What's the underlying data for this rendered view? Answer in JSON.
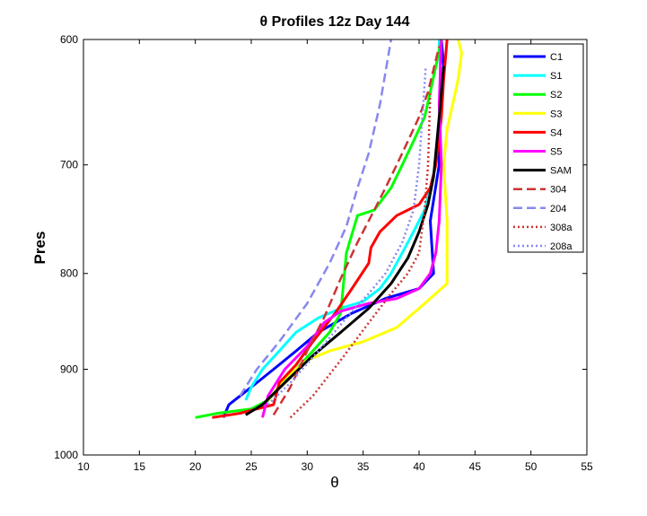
{
  "chart_data": {
    "type": "line",
    "title": "θ Profiles 12z Day 144",
    "xlabel": "θ",
    "ylabel": "Pres",
    "xlim": [
      10,
      55
    ],
    "ylim": [
      1000,
      600
    ],
    "y_reversed": true,
    "y_scale": "log",
    "x_ticks": [
      10,
      15,
      20,
      25,
      30,
      35,
      40,
      45,
      50,
      55
    ],
    "y_ticks": [
      600,
      700,
      800,
      900,
      1000
    ],
    "grid": false,
    "legend_position": "top-right",
    "series": [
      {
        "name": "C1",
        "color": "#0000ff",
        "dash": "solid",
        "x": [
          22.5,
          23.0,
          24.0,
          25.5,
          27.0,
          29.0,
          31.0,
          34.0,
          37.0,
          40.0,
          41.3,
          41.0,
          41.8,
          41.8,
          42.0,
          42.2,
          42.0
        ],
        "y": [
          955,
          940,
          930,
          915,
          900,
          880,
          860,
          840,
          825,
          815,
          800,
          750,
          700,
          680,
          650,
          620,
          600
        ]
      },
      {
        "name": "S1",
        "color": "#00ffff",
        "dash": "solid",
        "x": [
          24.5,
          25.0,
          26.0,
          27.5,
          29.0,
          31.0,
          33.0,
          35.0,
          36.5,
          37.5,
          38.5,
          39.5,
          40.5,
          41.0,
          41.5,
          42.0,
          41.8
        ],
        "y": [
          935,
          920,
          900,
          880,
          860,
          845,
          835,
          828,
          815,
          800,
          780,
          760,
          740,
          720,
          700,
          650,
          600
        ]
      },
      {
        "name": "S2",
        "color": "#00ff00",
        "dash": "solid",
        "x": [
          20.0,
          22.0,
          25.0,
          26.5,
          27.5,
          29.0,
          30.5,
          32.0,
          33.0,
          33.5,
          34.5,
          36.0,
          37.5,
          38.5,
          39.5,
          40.5,
          41.0,
          41.5,
          42.0
        ],
        "y": [
          955,
          950,
          945,
          935,
          920,
          900,
          880,
          860,
          840,
          780,
          745,
          740,
          720,
          700,
          680,
          660,
          640,
          620,
          600
        ]
      },
      {
        "name": "S3",
        "color": "#ffff00",
        "dash": "solid",
        "x": [
          26.5,
          28.0,
          30.0,
          32.0,
          35.0,
          38.0,
          40.0,
          41.5,
          42.5,
          42.5,
          42.2,
          42.5,
          43.0,
          43.5,
          43.8,
          43.5
        ],
        "y": [
          935,
          910,
          890,
          880,
          870,
          855,
          835,
          820,
          810,
          750,
          700,
          670,
          650,
          630,
          610,
          600
        ]
      },
      {
        "name": "S4",
        "color": "#ff0000",
        "dash": "solid",
        "x": [
          21.5,
          24.0,
          27.0,
          27.5,
          29.0,
          30.5,
          32.5,
          34.0,
          35.5,
          35.7,
          36.5,
          38.0,
          40.0,
          41.0,
          41.5,
          42.0,
          42.2,
          42.5
        ],
        "y": [
          955,
          950,
          940,
          915,
          895,
          870,
          840,
          815,
          790,
          775,
          760,
          745,
          735,
          720,
          700,
          660,
          630,
          600
        ]
      },
      {
        "name": "S5",
        "color": "#ff00ff",
        "dash": "solid",
        "x": [
          26.0,
          26.5,
          28.0,
          30.0,
          31.5,
          33.0,
          35.5,
          38.0,
          40.0,
          41.0,
          41.5,
          41.8,
          42.0,
          41.8,
          42.0
        ],
        "y": [
          955,
          930,
          900,
          875,
          850,
          838,
          830,
          825,
          815,
          800,
          780,
          750,
          700,
          650,
          600
        ]
      },
      {
        "name": "SAM",
        "color": "#000000",
        "dash": "solid",
        "x": [
          24.5,
          26.0,
          28.0,
          30.5,
          33.0,
          35.5,
          37.5,
          39.0,
          40.0,
          40.8,
          41.3,
          41.6,
          41.9,
          42.2
        ],
        "y": [
          952,
          940,
          915,
          885,
          860,
          835,
          810,
          785,
          760,
          735,
          710,
          680,
          650,
          620
        ]
      },
      {
        "name": "304",
        "color": "#cc3333",
        "dash": "dashed",
        "x": [
          27.0,
          28.5,
          30.0,
          31.5,
          33.0,
          34.5,
          36.0,
          37.0,
          38.0,
          39.0,
          40.0,
          40.8,
          41.8
        ],
        "y": [
          952,
          920,
          880,
          845,
          805,
          770,
          740,
          720,
          700,
          680,
          660,
          640,
          605
        ]
      },
      {
        "name": "204",
        "color": "#8888ee",
        "dash": "dashed",
        "x": [
          24.0,
          25.5,
          27.5,
          30.0,
          32.0,
          33.5,
          34.5,
          35.5,
          36.5,
          37.5
        ],
        "y": [
          930,
          900,
          870,
          830,
          790,
          755,
          720,
          690,
          650,
          600
        ]
      },
      {
        "name": "308a",
        "color": "#cc3333",
        "dash": "dotted",
        "x": [
          28.5,
          30.5,
          33.0,
          35.5,
          37.5,
          39.0,
          40.0,
          40.5,
          40.8,
          41.0
        ],
        "y": [
          955,
          930,
          890,
          850,
          820,
          800,
          780,
          740,
          700,
          640
        ]
      },
      {
        "name": "208a",
        "color": "#8888ee",
        "dash": "dotted",
        "x": [
          26.5,
          28.5,
          31.0,
          33.5,
          35.5,
          37.0,
          38.5,
          39.5,
          40.0,
          40.3,
          40.6
        ],
        "y": [
          940,
          915,
          880,
          845,
          820,
          800,
          770,
          740,
          700,
          660,
          620
        ]
      }
    ]
  }
}
